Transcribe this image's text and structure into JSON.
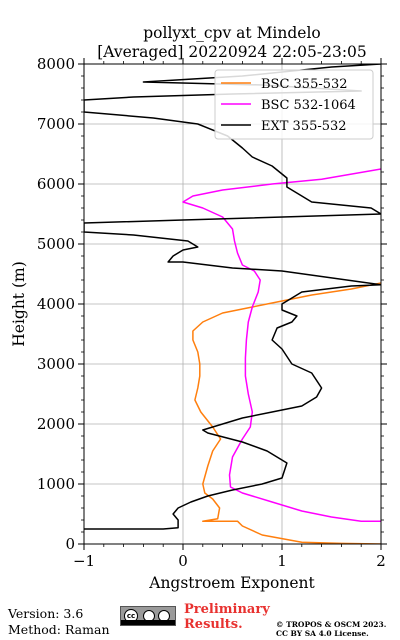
{
  "chart_data": {
    "type": "line",
    "title": "pollyxt_cpv at Mindelo",
    "subtitle": "[Averaged] 20220924 22:05-23:05",
    "xlabel": "Angstroem Exponent",
    "ylabel": "Height (m)",
    "xlim": [
      -1,
      2
    ],
    "ylim": [
      0,
      8000
    ],
    "xticks": [
      "−1",
      "0",
      "1",
      "2"
    ],
    "yticks": [
      "0",
      "1000",
      "2000",
      "3000",
      "4000",
      "5000",
      "6000",
      "7000",
      "8000"
    ],
    "grid": true,
    "legend_position": "top-right",
    "series": [
      {
        "name": "BSC 355-532",
        "color": "#ff7f0e",
        "points": [
          [
            2.0,
            0
          ],
          [
            1.6,
            10
          ],
          [
            1.2,
            30
          ],
          [
            0.8,
            150
          ],
          [
            0.6,
            300
          ],
          [
            0.55,
            380
          ],
          [
            0.2,
            380
          ],
          [
            0.35,
            420
          ],
          [
            0.37,
            600
          ],
          [
            0.3,
            750
          ],
          [
            0.22,
            850
          ],
          [
            0.2,
            1000
          ],
          [
            0.25,
            1300
          ],
          [
            0.3,
            1550
          ],
          [
            0.38,
            1750
          ],
          [
            0.3,
            1950
          ],
          [
            0.18,
            2200
          ],
          [
            0.12,
            2400
          ],
          [
            0.15,
            2600
          ],
          [
            0.17,
            2800
          ],
          [
            0.17,
            3000
          ],
          [
            0.15,
            3200
          ],
          [
            0.1,
            3400
          ],
          [
            0.1,
            3550
          ],
          [
            0.2,
            3700
          ],
          [
            0.4,
            3850
          ],
          [
            0.7,
            3950
          ],
          [
            1.0,
            4050
          ],
          [
            1.3,
            4150
          ],
          [
            1.7,
            4250
          ],
          [
            2.0,
            4350
          ]
        ]
      },
      {
        "name": "BSC 532-1064",
        "color": "#ff00ff",
        "points": [
          [
            2.0,
            380
          ],
          [
            1.8,
            380
          ],
          [
            1.5,
            450
          ],
          [
            1.2,
            550
          ],
          [
            0.9,
            700
          ],
          [
            0.6,
            850
          ],
          [
            0.48,
            950
          ],
          [
            0.47,
            1150
          ],
          [
            0.5,
            1450
          ],
          [
            0.6,
            1750
          ],
          [
            0.68,
            1950
          ],
          [
            0.7,
            2200
          ],
          [
            0.66,
            2500
          ],
          [
            0.63,
            2800
          ],
          [
            0.63,
            3100
          ],
          [
            0.64,
            3400
          ],
          [
            0.66,
            3700
          ],
          [
            0.7,
            3950
          ],
          [
            0.76,
            4200
          ],
          [
            0.78,
            4400
          ],
          [
            0.72,
            4550
          ],
          [
            0.6,
            4650
          ],
          [
            0.55,
            4850
          ],
          [
            0.52,
            5050
          ],
          [
            0.5,
            5250
          ],
          [
            0.4,
            5450
          ],
          [
            0.2,
            5600
          ],
          [
            0.0,
            5700
          ],
          [
            0.1,
            5800
          ],
          [
            0.4,
            5900
          ],
          [
            0.9,
            6000
          ],
          [
            1.4,
            6080
          ],
          [
            2.0,
            6250
          ]
        ]
      },
      {
        "name": "EXT 355-532",
        "color": "#000000",
        "points": [
          [
            -1.0,
            250
          ],
          [
            -0.2,
            250
          ],
          [
            -0.05,
            270
          ],
          [
            -0.05,
            400
          ],
          [
            -0.1,
            500
          ],
          [
            -0.05,
            600
          ],
          [
            0.08,
            700
          ],
          [
            0.25,
            800
          ],
          [
            0.5,
            900
          ],
          [
            0.8,
            1000
          ],
          [
            1.0,
            1100
          ],
          [
            1.05,
            1350
          ],
          [
            0.85,
            1550
          ],
          [
            0.6,
            1700
          ],
          [
            0.25,
            1850
          ],
          [
            0.2,
            1900
          ],
          [
            0.4,
            2000
          ],
          [
            0.6,
            2100
          ],
          [
            0.9,
            2200
          ],
          [
            1.2,
            2300
          ],
          [
            1.35,
            2450
          ],
          [
            1.4,
            2600
          ],
          [
            1.3,
            2850
          ],
          [
            1.1,
            3000
          ],
          [
            1.0,
            3250
          ],
          [
            0.9,
            3400
          ],
          [
            0.95,
            3600
          ],
          [
            1.1,
            3700
          ],
          [
            1.15,
            3800
          ],
          [
            1.0,
            3900
          ],
          [
            1.0,
            4000
          ],
          [
            1.2,
            4200
          ],
          [
            1.7,
            4300
          ],
          [
            2.0,
            4320
          ],
          [
            1.0,
            4550
          ],
          [
            0.5,
            4600
          ],
          [
            0.0,
            4700
          ],
          [
            -0.15,
            4700
          ],
          [
            -0.1,
            4800
          ],
          [
            0.0,
            4900
          ],
          [
            0.15,
            4950
          ],
          [
            0.05,
            5050
          ],
          [
            -0.5,
            5150
          ],
          [
            -1.0,
            5200
          ],
          [
            -1.0,
            5350
          ],
          [
            0.0,
            5400
          ],
          [
            2.0,
            5500
          ],
          [
            1.9,
            5600
          ],
          [
            1.6,
            5650
          ],
          [
            1.3,
            5700
          ],
          [
            1.2,
            5800
          ],
          [
            1.05,
            5950
          ],
          [
            1.05,
            6100
          ],
          [
            0.9,
            6300
          ],
          [
            0.7,
            6450
          ],
          [
            0.6,
            6600
          ],
          [
            0.45,
            6800
          ],
          [
            0.15,
            7000
          ],
          [
            -0.3,
            7100
          ],
          [
            -1.0,
            7200
          ],
          [
            -1.0,
            7400
          ],
          [
            -0.5,
            7450
          ],
          [
            0.5,
            7500
          ],
          [
            1.8,
            7550
          ],
          [
            0.8,
            7650
          ],
          [
            -0.4,
            7700
          ],
          [
            0.6,
            7800
          ],
          [
            1.5,
            7950
          ],
          [
            2.0,
            8000
          ]
        ]
      }
    ]
  },
  "footer": {
    "version": "Version: 3.6",
    "method": "Method: Raman",
    "license_badge": "cc",
    "preliminary_line1": "Preliminary",
    "preliminary_line2": "Results.",
    "copyright_line1": "© TROPOS & OSCM 2023.",
    "copyright_line2": "CC BY SA 4.0 License."
  }
}
